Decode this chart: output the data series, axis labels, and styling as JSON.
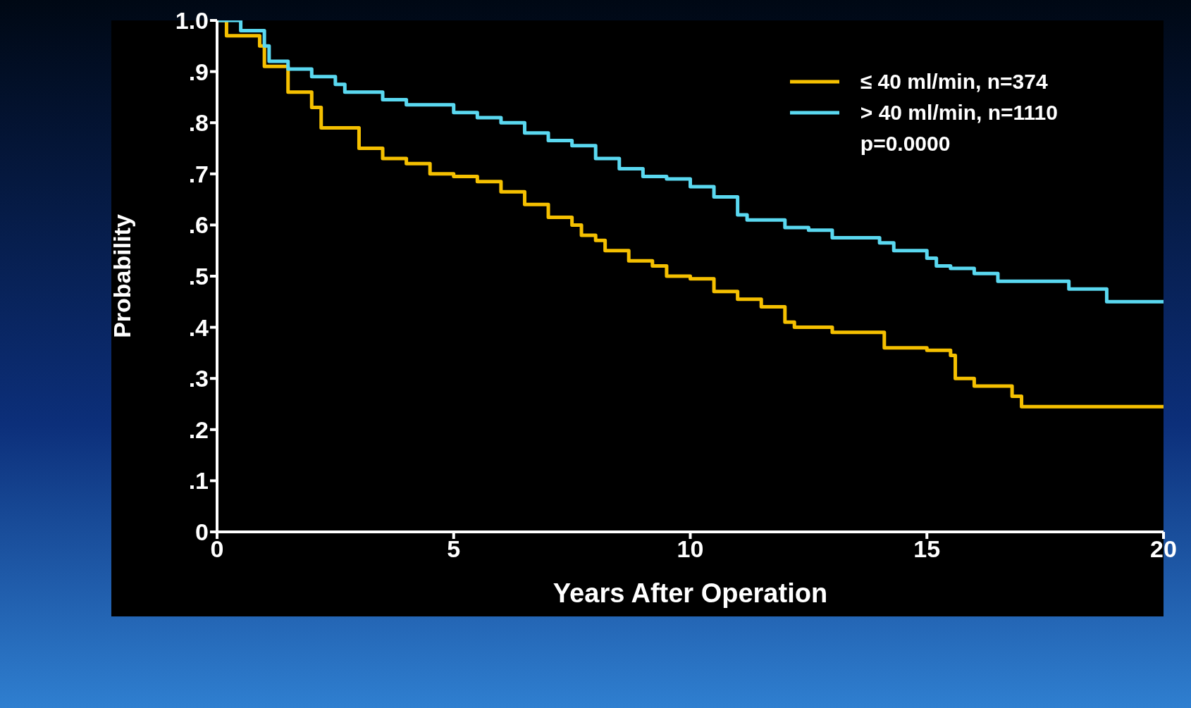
{
  "chart_data": {
    "type": "step",
    "xlabel": "Years After Operation",
    "ylabel": "Probability",
    "xlim": [
      0,
      20
    ],
    "xticks": [
      0,
      5,
      10,
      15,
      20
    ],
    "ylim": [
      0,
      1
    ],
    "yticks": [
      {
        "value": 0,
        "label": "0"
      },
      {
        "value": 0.1,
        "label": ".1"
      },
      {
        "value": 0.2,
        "label": ".2"
      },
      {
        "value": 0.3,
        "label": ".3"
      },
      {
        "value": 0.4,
        "label": ".4"
      },
      {
        "value": 0.5,
        "label": ".5"
      },
      {
        "value": 0.6,
        "label": ".6"
      },
      {
        "value": 0.7,
        "label": ".7"
      },
      {
        "value": 0.8,
        "label": ".8"
      },
      {
        "value": 0.9,
        "label": ".9"
      },
      {
        "value": 1,
        "label": "1.0"
      }
    ],
    "legend": "top right",
    "marker": "none",
    "line_style": "solid",
    "annotations": [
      "p=0.0000"
    ],
    "series": [
      {
        "name": "≤ 40 ml/min, n=374",
        "color": "#f5c000",
        "x": [
          0,
          0.2,
          0.9,
          1.0,
          1.5,
          2,
          2.2,
          3,
          3.5,
          4,
          4.5,
          5,
          5.5,
          6,
          6.5,
          7,
          7.5,
          7.7,
          8,
          8.2,
          8.7,
          9.2,
          9.5,
          10,
          10.5,
          11,
          11.5,
          12,
          12.2,
          13,
          14.1,
          15,
          15.5,
          15.6,
          16,
          16.8,
          17,
          20
        ],
        "values": [
          1.0,
          0.97,
          0.95,
          0.91,
          0.86,
          0.83,
          0.79,
          0.75,
          0.73,
          0.72,
          0.7,
          0.695,
          0.685,
          0.665,
          0.64,
          0.615,
          0.6,
          0.58,
          0.57,
          0.55,
          0.53,
          0.52,
          0.5,
          0.495,
          0.47,
          0.455,
          0.44,
          0.41,
          0.4,
          0.39,
          0.36,
          0.355,
          0.345,
          0.3,
          0.285,
          0.265,
          0.245,
          0.245
        ]
      },
      {
        "name": "> 40 ml/min, n=1110",
        "color": "#5ad8f0",
        "x": [
          0,
          0.5,
          1.0,
          1.1,
          1.5,
          2,
          2.5,
          2.7,
          3.5,
          4,
          5,
          5.5,
          6,
          6.5,
          7,
          7.5,
          8,
          8.5,
          9,
          9.5,
          10,
          10.5,
          11,
          11.2,
          12,
          12.5,
          13,
          14,
          14.3,
          15,
          15.2,
          15.5,
          16,
          16.5,
          17.5,
          18,
          18.5,
          18.8,
          20
        ],
        "values": [
          1.0,
          0.98,
          0.95,
          0.92,
          0.905,
          0.89,
          0.875,
          0.86,
          0.845,
          0.835,
          0.82,
          0.81,
          0.8,
          0.78,
          0.765,
          0.755,
          0.73,
          0.71,
          0.695,
          0.69,
          0.675,
          0.655,
          0.62,
          0.61,
          0.595,
          0.59,
          0.575,
          0.565,
          0.55,
          0.535,
          0.52,
          0.515,
          0.505,
          0.49,
          0.49,
          0.475,
          0.475,
          0.45,
          0.45
        ]
      }
    ]
  }
}
